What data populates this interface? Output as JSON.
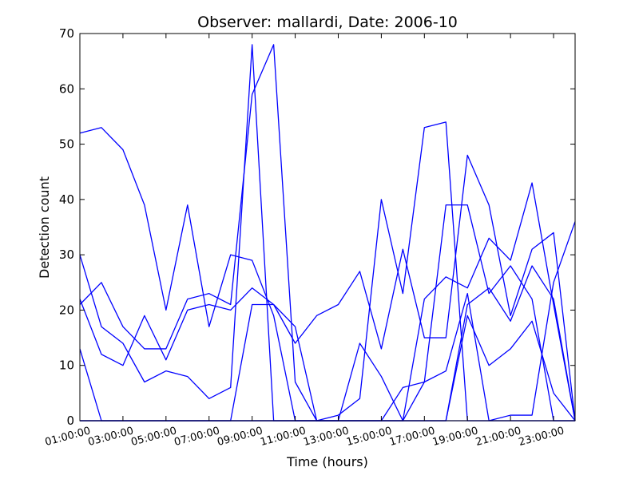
{
  "chart_data": {
    "type": "line",
    "title": "Observer: mallardi, Date: 2006-10",
    "xlabel": "Time (hours)",
    "ylabel": "Detection count",
    "ylim": [
      0,
      70
    ],
    "yticks": [
      "0",
      "10",
      "20",
      "30",
      "40",
      "50",
      "60",
      "70"
    ],
    "xlim": [
      1,
      24
    ],
    "xtick_labels": [
      "01:00:00",
      "03:00:00",
      "05:00:00",
      "07:00:00",
      "09:00:00",
      "11:00:00",
      "13:00:00",
      "15:00:00",
      "17:00:00",
      "19:00:00",
      "21:00:00",
      "23:00:00"
    ],
    "xtick_hours": [
      1,
      3,
      5,
      7,
      9,
      11,
      13,
      15,
      17,
      19,
      21,
      23
    ],
    "line_color": "#0000ff",
    "grid": false,
    "x": [
      1,
      2,
      3,
      4,
      5,
      6,
      7,
      8,
      9,
      10,
      11,
      12,
      13,
      14,
      15,
      16,
      17,
      18,
      19,
      20,
      21,
      22,
      23,
      24
    ],
    "series": [
      {
        "values": [
          52,
          53,
          49,
          39,
          20,
          39,
          17,
          30,
          29,
          19,
          0,
          0,
          0,
          0,
          0,
          0,
          0,
          0,
          0,
          0,
          1,
          1,
          25,
          36
        ]
      },
      {
        "values": [
          21,
          25,
          17,
          13,
          13,
          22,
          23,
          21,
          59,
          68,
          7,
          0,
          1,
          4,
          40,
          23,
          53,
          54,
          0,
          0,
          0,
          0,
          0,
          0
        ]
      },
      {
        "values": [
          30,
          17,
          14,
          7,
          9,
          8,
          4,
          6,
          68,
          0,
          0,
          0,
          0,
          14,
          8,
          0,
          7,
          39,
          39,
          23,
          28,
          22,
          0,
          0
        ]
      },
      {
        "values": [
          22,
          12,
          10,
          19,
          11,
          20,
          21,
          20,
          24,
          21,
          14,
          19,
          21,
          27,
          13,
          31,
          15,
          15,
          48,
          39,
          19,
          31,
          34,
          0
        ]
      },
      {
        "values": [
          13,
          0,
          0,
          0,
          0,
          0,
          0,
          0,
          21,
          21,
          17,
          0,
          0,
          0,
          0,
          6,
          7,
          9,
          23,
          0,
          0,
          0,
          0,
          0
        ]
      },
      {
        "values": [
          0,
          0,
          0,
          0,
          0,
          0,
          0,
          0,
          0,
          0,
          0,
          0,
          0,
          0,
          0,
          0,
          22,
          26,
          24,
          33,
          29,
          43,
          21,
          0
        ]
      },
      {
        "values": [
          0,
          0,
          0,
          0,
          0,
          0,
          0,
          0,
          0,
          0,
          0,
          0,
          0,
          0,
          0,
          0,
          0,
          0,
          19,
          10,
          13,
          18,
          5,
          0
        ]
      },
      {
        "values": [
          0,
          0,
          0,
          0,
          0,
          0,
          0,
          0,
          0,
          0,
          0,
          0,
          0,
          0,
          0,
          0,
          0,
          0,
          21,
          24,
          18,
          28,
          22,
          0
        ]
      }
    ]
  }
}
